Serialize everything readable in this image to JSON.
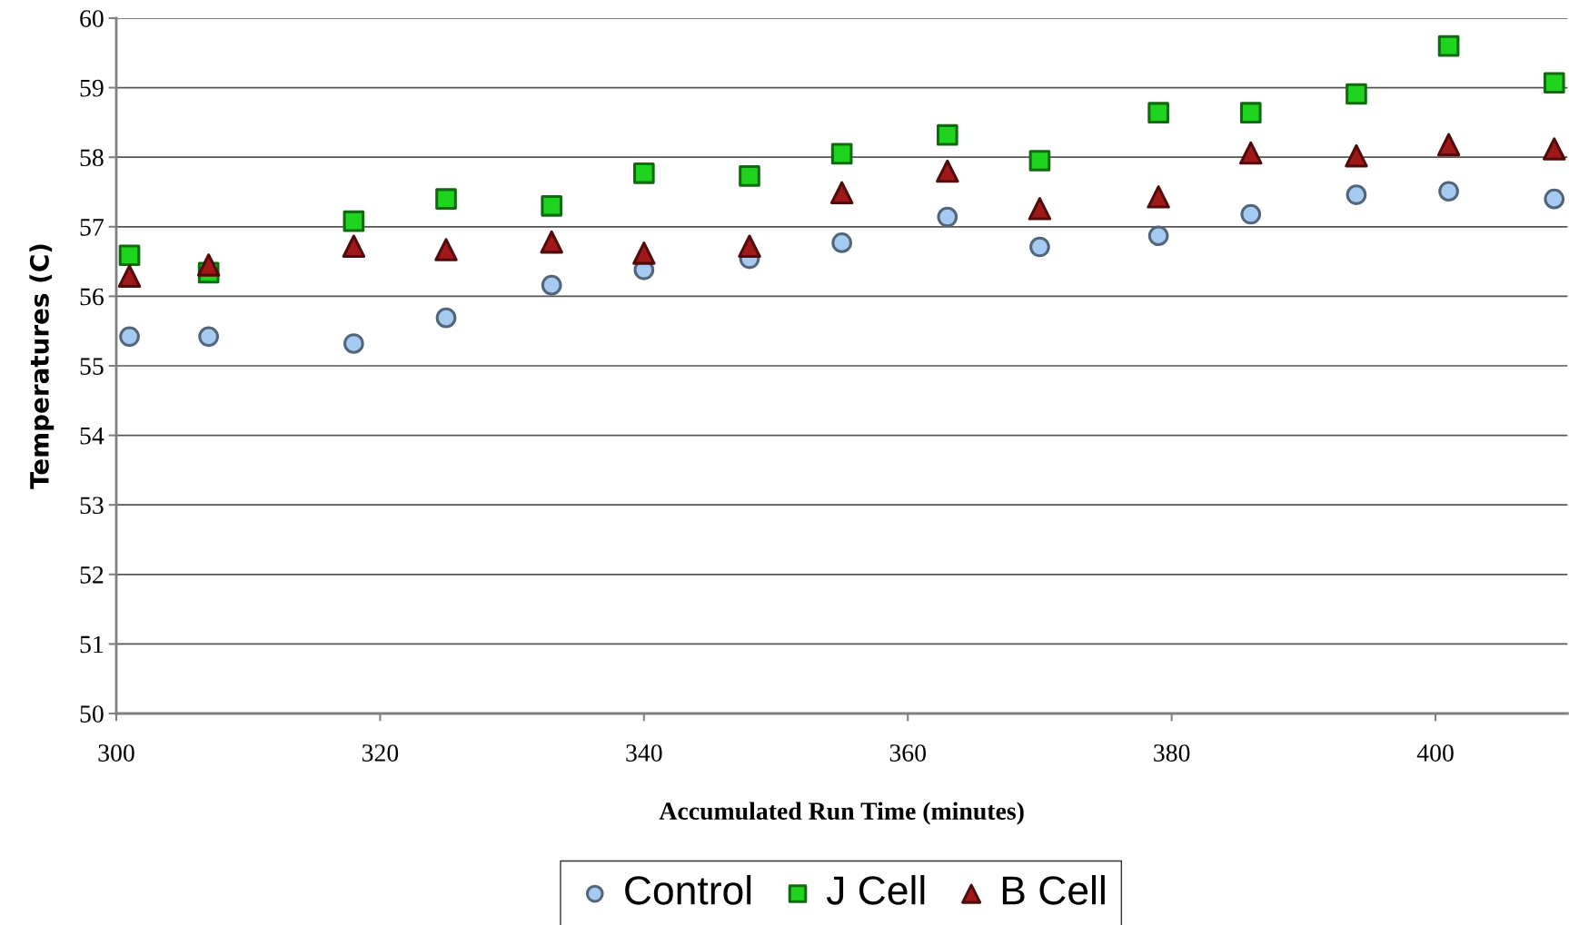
{
  "chart_data": {
    "type": "scatter",
    "xlabel": "Accumulated Run Time (minutes)",
    "ylabel": "Temperatures (C)",
    "x": [
      301,
      307,
      318,
      325,
      333,
      340,
      348,
      355,
      363,
      370,
      379,
      386,
      394,
      401,
      409
    ],
    "series": [
      {
        "name": "Control",
        "color": "#a6cbf2",
        "marker": "circle",
        "values": [
          55.42,
          55.42,
          55.32,
          55.69,
          56.16,
          56.38,
          56.54,
          56.77,
          57.14,
          56.71,
          56.87,
          57.18,
          57.46,
          57.51,
          57.4
        ]
      },
      {
        "name": "J Cell",
        "color": "#1fd41f",
        "marker": "square",
        "values": [
          56.59,
          56.34,
          57.08,
          57.4,
          57.3,
          57.77,
          57.73,
          58.05,
          58.32,
          57.95,
          58.64,
          58.64,
          58.91,
          59.6,
          59.07
        ]
      },
      {
        "name": "B Cell",
        "color": "#a01818",
        "marker": "triangle",
        "values": [
          56.29,
          56.45,
          56.72,
          56.67,
          56.78,
          56.62,
          56.72,
          57.49,
          57.8,
          57.26,
          57.43,
          58.06,
          58.02,
          58.18,
          58.12
        ]
      }
    ],
    "xlim": [
      300,
      410
    ],
    "xticks": [
      300,
      320,
      340,
      360,
      380,
      400
    ],
    "ylim": [
      50,
      60
    ],
    "yticks": [
      50,
      51,
      52,
      53,
      54,
      55,
      56,
      57,
      58,
      59,
      60
    ],
    "grid": "y",
    "legend": "bottom"
  }
}
